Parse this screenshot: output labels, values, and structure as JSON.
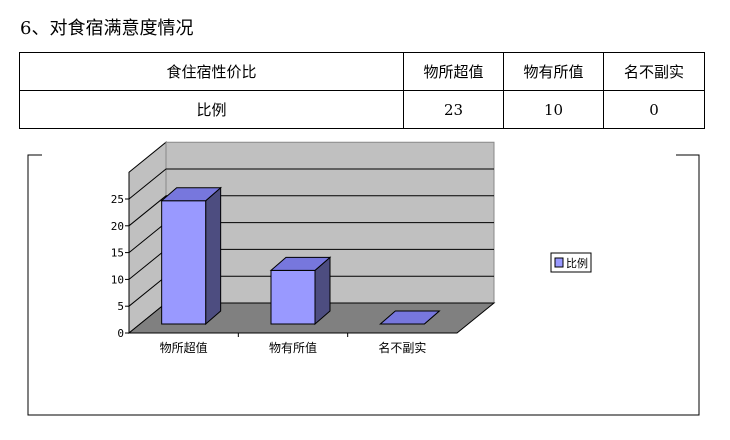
{
  "heading": "6、对食宿满意度情况",
  "table": {
    "header": [
      "食住宿性价比",
      "物所超值",
      "物有所值",
      "名不副实"
    ],
    "row": [
      "比例",
      "23",
      "10",
      "0"
    ]
  },
  "chart_data": {
    "type": "bar",
    "style": "3d-column",
    "categories": [
      "物所超值",
      "物有所值",
      "名不副实"
    ],
    "series": [
      {
        "name": "比例",
        "values": [
          23,
          10,
          0
        ]
      }
    ],
    "ylim": [
      0,
      25
    ],
    "yticks": [
      0,
      5,
      10,
      15,
      20,
      25
    ],
    "grid": true,
    "legend": "right",
    "colors": {
      "bar": "#9999ff",
      "bar_side": "#4d4d80",
      "wall": "#c0c0c0",
      "floor": "#808080"
    }
  }
}
